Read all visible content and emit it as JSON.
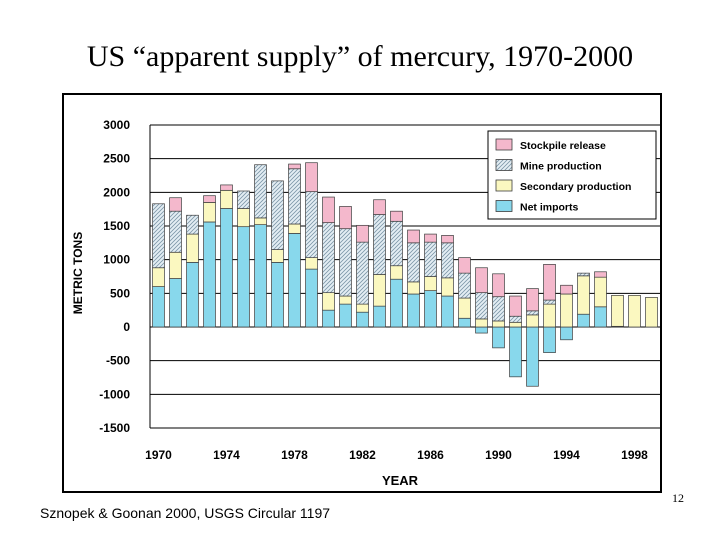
{
  "slide": {
    "title": "US “apparent supply” of mercury, 1970-2000",
    "citation": "Sznopek & Goonan 2000, USGS Circular 1197",
    "page_number": "12"
  },
  "chart_data": {
    "type": "bar",
    "stacked": true,
    "xlabel": "YEAR",
    "ylabel": "METRIC TONS",
    "ylim": [
      -1500,
      3000
    ],
    "yticks": [
      3000,
      2500,
      2000,
      1500,
      1000,
      500,
      0,
      -500,
      -1000,
      -1500
    ],
    "ytick_labels": [
      "3000",
      "2500",
      "2000",
      "1500",
      "1000",
      "500",
      "0",
      "-500",
      "-1000",
      "-1500"
    ],
    "xtick_labels": [
      "1970",
      "1974",
      "1978",
      "1982",
      "1986",
      "1990",
      "1994",
      "1998"
    ],
    "legend_position": "top-right",
    "grid": "horizontal",
    "categories": [
      1970,
      1971,
      1972,
      1973,
      1974,
      1975,
      1976,
      1977,
      1978,
      1979,
      1980,
      1981,
      1982,
      1983,
      1984,
      1985,
      1986,
      1987,
      1988,
      1989,
      1990,
      1991,
      1992,
      1993,
      1994,
      1995,
      1996,
      1997,
      1998,
      1999
    ],
    "series": [
      {
        "name": "Net imports",
        "color": "#88d8ec",
        "pattern": "solid",
        "values": [
          600,
          720,
          960,
          1560,
          1760,
          1490,
          1520,
          960,
          1390,
          860,
          250,
          340,
          220,
          310,
          710,
          490,
          540,
          460,
          130,
          -90,
          -310,
          -740,
          -880,
          -380,
          -190,
          190,
          300,
          10,
          0,
          0
        ]
      },
      {
        "name": "Secondary production",
        "color": "#fbf8c0",
        "pattern": "solid",
        "values": [
          280,
          390,
          420,
          290,
          270,
          270,
          100,
          190,
          140,
          170,
          260,
          120,
          120,
          470,
          200,
          180,
          210,
          270,
          300,
          120,
          90,
          70,
          180,
          340,
          490,
          570,
          440,
          460,
          470,
          440
        ]
      },
      {
        "name": "Mine production",
        "color": "#e4eef4",
        "pattern": "hatch",
        "values": [
          950,
          610,
          280,
          0,
          0,
          260,
          790,
          1020,
          820,
          980,
          1040,
          1000,
          920,
          890,
          660,
          580,
          510,
          520,
          370,
          390,
          360,
          90,
          60,
          60,
          0,
          40,
          0,
          0,
          0,
          0
        ]
      },
      {
        "name": "Stockpile release",
        "color": "#f4b8cc",
        "pattern": "solid",
        "values": [
          0,
          200,
          0,
          100,
          80,
          0,
          0,
          0,
          70,
          430,
          380,
          330,
          250,
          220,
          150,
          190,
          120,
          110,
          230,
          370,
          340,
          300,
          330,
          530,
          130,
          0,
          80,
          0,
          0,
          0
        ]
      }
    ]
  }
}
